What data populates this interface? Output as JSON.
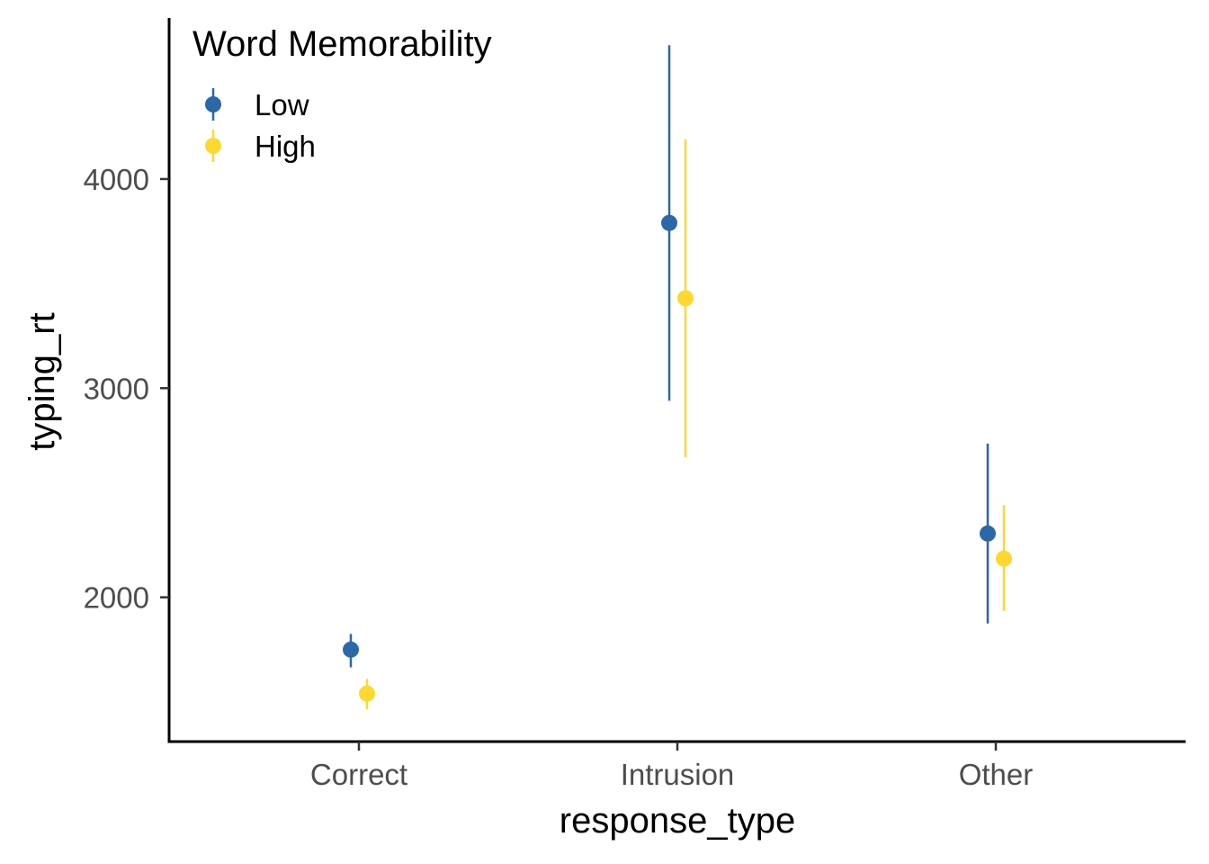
{
  "chart_data": {
    "type": "scatter",
    "xlabel": "response_type",
    "ylabel": "typing_rt",
    "categories": [
      "Correct",
      "Intrusion",
      "Other"
    ],
    "ylim": [
      1310,
      4770
    ],
    "yticks": [
      2000,
      3000,
      4000
    ],
    "ytick_labels": [
      "2000",
      "3000",
      "4000"
    ],
    "grid": false,
    "legend": {
      "title": "Word Memorability",
      "position": "top-left",
      "entries": [
        "Low",
        "High"
      ]
    },
    "series": [
      {
        "name": "Low",
        "color": "#2c67a8",
        "values": [
          1750,
          3790,
          2305
        ],
        "ci_low": [
          1665,
          2940,
          1875
        ],
        "ci_high": [
          1825,
          4640,
          2735
        ]
      },
      {
        "name": "High",
        "color": "#fdd833",
        "values": [
          1540,
          3430,
          2185
        ],
        "ci_low": [
          1465,
          2670,
          1935
        ],
        "ci_high": [
          1610,
          4190,
          2440
        ]
      }
    ]
  }
}
